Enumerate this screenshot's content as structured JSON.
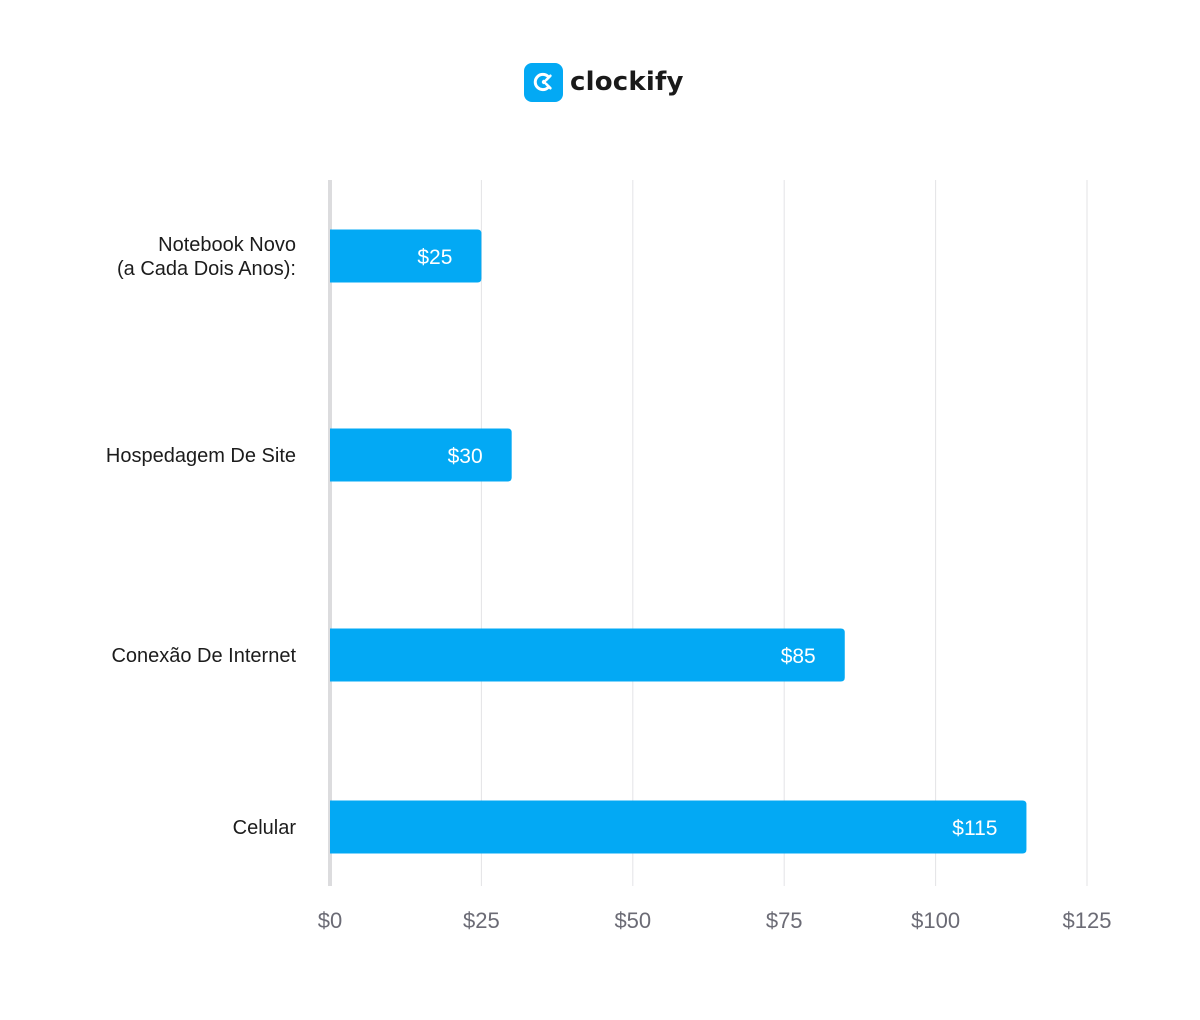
{
  "brand": {
    "name": "clockify",
    "icon": "clockify-logo-icon",
    "color": "#03a9f4"
  },
  "chart_data": {
    "type": "bar",
    "orientation": "horizontal",
    "categories": [
      [
        "Notebook Novo",
        "(a Cada Dois Anos):"
      ],
      [
        "Hospedagem De Site"
      ],
      [
        "Conexão De Internet"
      ],
      [
        "Celular"
      ]
    ],
    "values": [
      25,
      30,
      85,
      115
    ],
    "value_labels": [
      "$25",
      "$30",
      "$85",
      "$115"
    ],
    "x_ticks": [
      0,
      25,
      50,
      75,
      100,
      125
    ],
    "x_tick_labels": [
      "$0",
      "$25",
      "$50",
      "$75",
      "$100",
      "$125"
    ],
    "xlim": [
      0,
      125
    ],
    "grid": "vertical",
    "bar_color": "#03a9f4",
    "grid_color": "#e3e3e6",
    "axis_color": "#dcdcde",
    "title": "",
    "xlabel": "",
    "ylabel": ""
  }
}
